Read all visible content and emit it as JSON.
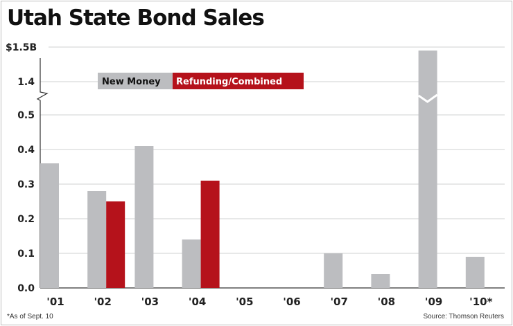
{
  "chart_data": {
    "type": "bar",
    "title": "Utah State Bond Sales",
    "xlabel": "",
    "ylabel": "",
    "categories": [
      "'01",
      "'02",
      "'03",
      "'04",
      "'05",
      "'06",
      "'07",
      "'08",
      "'09",
      "'10*"
    ],
    "series": [
      {
        "name": "New Money",
        "color": "#bcbdc0",
        "values": [
          0.36,
          0.28,
          0.41,
          0.14,
          0,
          0,
          0.1,
          0.04,
          1.49,
          0.09
        ]
      },
      {
        "name": "Refunding/Combined",
        "color": "#b5121b",
        "values": [
          0,
          0.25,
          0,
          0.31,
          0,
          0,
          0,
          0,
          0,
          0
        ]
      }
    ],
    "yticks": [
      {
        "value": 0.0,
        "label": "0.0"
      },
      {
        "value": 0.1,
        "label": "0.1"
      },
      {
        "value": 0.2,
        "label": "0.2"
      },
      {
        "value": 0.3,
        "label": "0.3"
      },
      {
        "value": 0.4,
        "label": "0.4"
      },
      {
        "value": 0.5,
        "label": "0.5"
      },
      {
        "value": 1.4,
        "label": "1.4"
      },
      {
        "value": 1.5,
        "label": "$1.5B"
      }
    ],
    "ylim": [
      0,
      1.5
    ],
    "axis_break": [
      0.5,
      1.4
    ],
    "grid": true,
    "legend_position": "top-left",
    "footnote": "*As of Sept. 10",
    "source": "Source: Thomson Reuters"
  }
}
